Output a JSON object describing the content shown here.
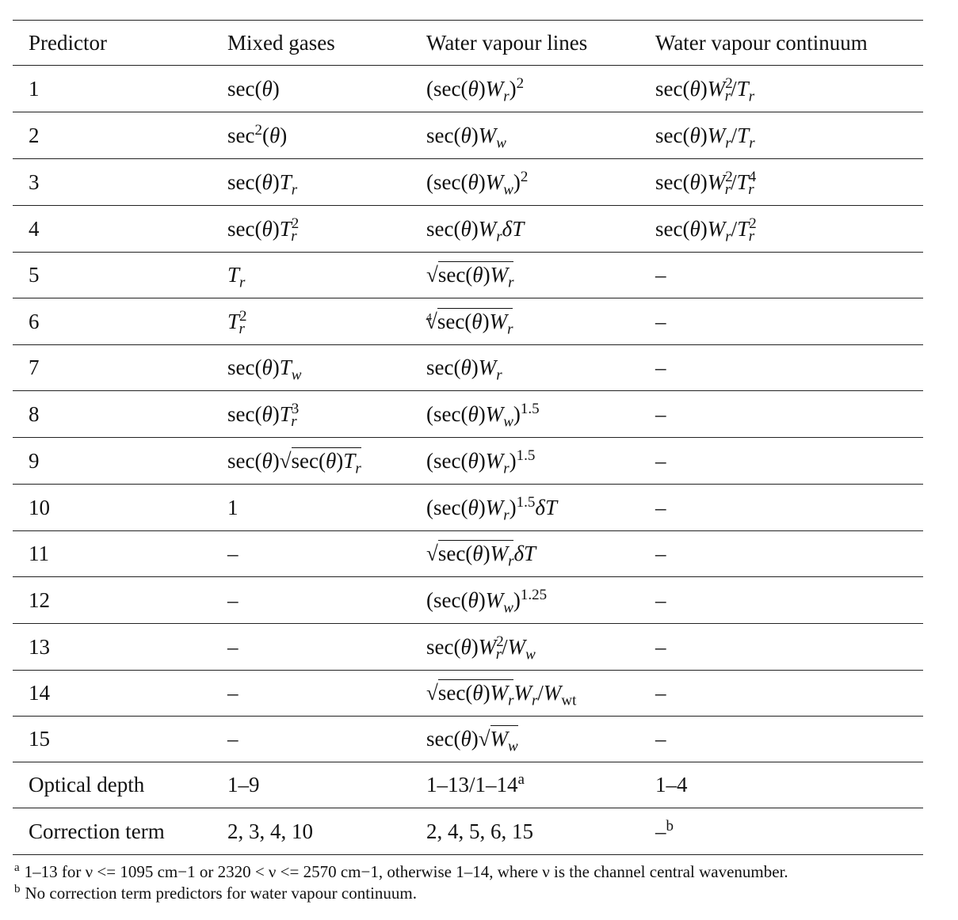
{
  "headers": [
    "Predictor",
    "Mixed gases",
    "Water vapour lines",
    "Water vapour continuum"
  ],
  "rows": [
    {
      "p": "1",
      "mg": "sec(θ)",
      "wl": "(sec(θ)Wr)^2",
      "wc": "sec(θ)Wr^2/Tr"
    },
    {
      "p": "2",
      "mg": "sec^2(θ)",
      "wl": "sec(θ)Ww",
      "wc": "sec(θ)Wr/Tr"
    },
    {
      "p": "3",
      "mg": "sec(θ)Tr",
      "wl": "(sec(θ)Ww)^2",
      "wc": "sec(θ)Wr^2/Tr^4"
    },
    {
      "p": "4",
      "mg": "sec(θ)Tr^2",
      "wl": "sec(θ)WrδT",
      "wc": "sec(θ)Wr/Tr^2"
    },
    {
      "p": "5",
      "mg": "Tr",
      "wl": "√(sec(θ)Wr)",
      "wc": "–"
    },
    {
      "p": "6",
      "mg": "Tr^2",
      "wl": "∜(sec(θ)Wr)",
      "wc": "–"
    },
    {
      "p": "7",
      "mg": "sec(θ)Tw",
      "wl": "sec(θ)Wr",
      "wc": "–"
    },
    {
      "p": "8",
      "mg": "sec(θ)Tr^3",
      "wl": "(sec(θ)Ww)^1.5",
      "wc": "–"
    },
    {
      "p": "9",
      "mg": "sec(θ)√(sec(θ)Tr)",
      "wl": "(sec(θ)Wr)^1.5",
      "wc": "–"
    },
    {
      "p": "10",
      "mg": "1",
      "wl": "(sec(θ)Wr)^1.5δT",
      "wc": "–"
    },
    {
      "p": "11",
      "mg": "–",
      "wl": "√(sec(θ)Wr)δT",
      "wc": "–"
    },
    {
      "p": "12",
      "mg": "–",
      "wl": "(sec(θ)Ww)^1.25",
      "wc": "–"
    },
    {
      "p": "13",
      "mg": "–",
      "wl": "sec(θ)Wr^2/Ww",
      "wc": "–"
    },
    {
      "p": "14",
      "mg": "–",
      "wl": "√(sec(θ)Wr)Wr/Wwt",
      "wc": "–"
    },
    {
      "p": "15",
      "mg": "–",
      "wl": "sec(θ)√Ww",
      "wc": "–"
    },
    {
      "p": "Optical depth",
      "mg": "1–9",
      "wl": "1–13/1–14",
      "wl_mark": "a",
      "wc": "1–4"
    },
    {
      "p": "Correction term",
      "mg": "2, 3, 4, 10",
      "wl": "2, 4, 5, 6, 15",
      "wc": "–",
      "wc_mark": "b"
    }
  ],
  "footnotes": [
    {
      "mark": "a",
      "text": "1–13 for ν <= 1095 cm−1 or 2320 < ν <= 2570 cm−1, otherwise 1–14, where ν is the channel central wavenumber."
    },
    {
      "mark": "b",
      "text": "No correction term predictors for water vapour continuum."
    }
  ]
}
